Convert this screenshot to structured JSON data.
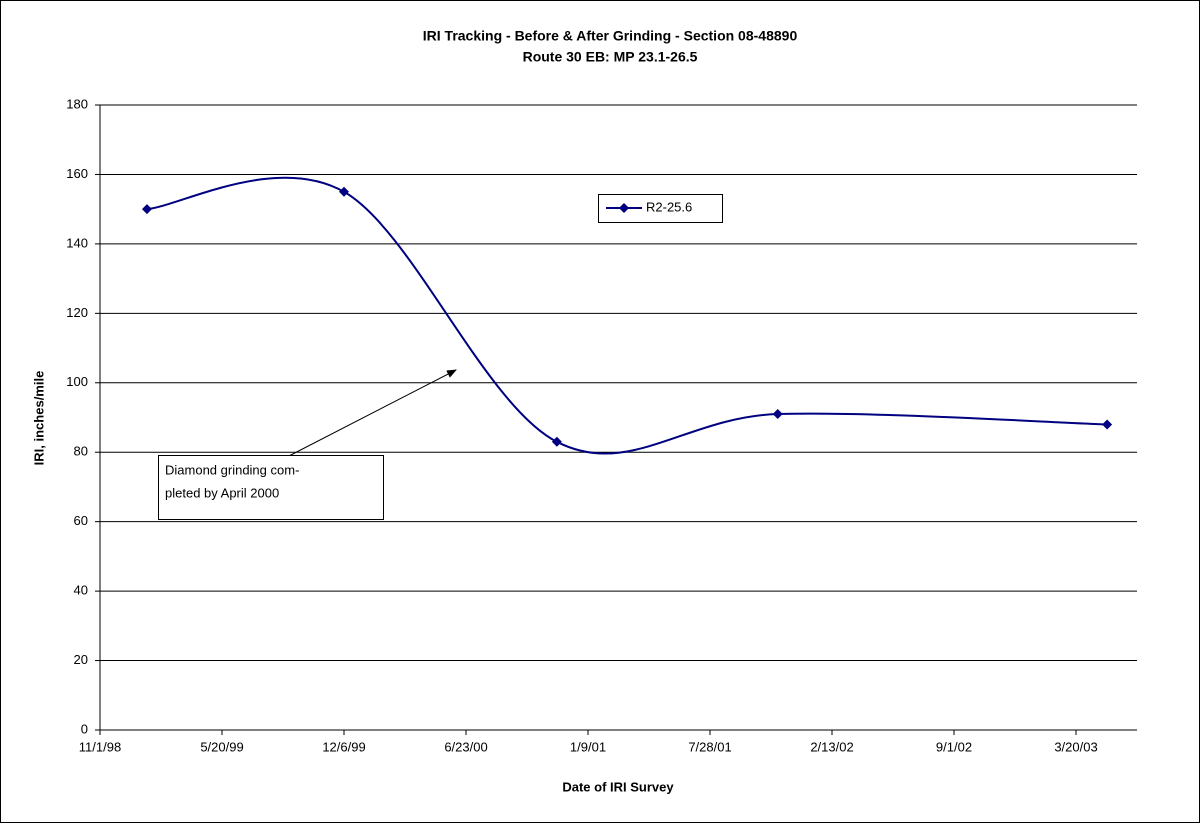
{
  "chart_data": {
    "type": "line",
    "title": "IRI Tracking - Before & After Grinding - Section 08-48890",
    "subtitle": "Route 30 EB: MP 23.1-26.5",
    "x_label": "Date of IRI Survey",
    "y_label": "IRI, inches/mile",
    "x": [
      "1999-01-17",
      "1999-12-06",
      "2000-11-19",
      "2001-11-16",
      "2003-05-10"
    ],
    "series": [
      {
        "name": "R2-25.6",
        "color": "#000080",
        "values": [
          150,
          155,
          83,
          91,
          88
        ]
      }
    ],
    "xlim": [
      "1998-11-01",
      "2003-06-28"
    ],
    "xticks": [
      {
        "value": "1998-11-01",
        "label": "11/1/98"
      },
      {
        "value": "1999-05-20",
        "label": "5/20/99"
      },
      {
        "value": "1999-12-06",
        "label": "12/6/99"
      },
      {
        "value": "2000-06-23",
        "label": "6/23/00"
      },
      {
        "value": "2001-01-09",
        "label": "1/9/01"
      },
      {
        "value": "2001-07-28",
        "label": "7/28/01"
      },
      {
        "value": "2002-02-13",
        "label": "2/13/02"
      },
      {
        "value": "2002-09-01",
        "label": "9/1/02"
      },
      {
        "value": "2003-03-20",
        "label": "3/20/03"
      }
    ],
    "ylim": [
      0,
      180
    ],
    "yticks": [
      0,
      20,
      40,
      60,
      80,
      100,
      120,
      140,
      160,
      180
    ],
    "grid": true,
    "smooth": true,
    "annotation": [
      "Diamond grinding com-",
      "pleted by April 2000"
    ]
  }
}
